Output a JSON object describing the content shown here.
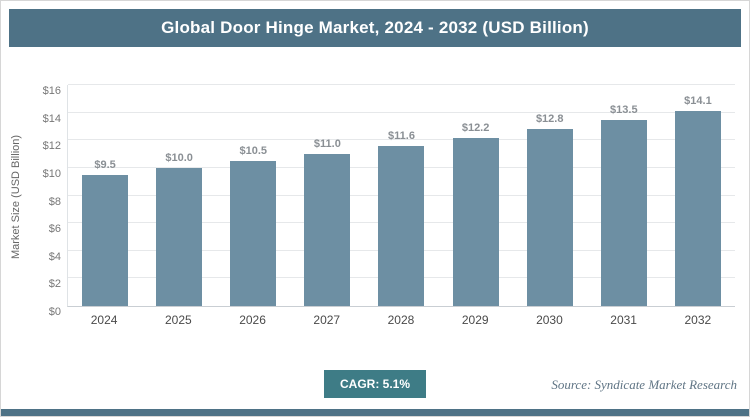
{
  "header": {
    "title": "Global Door Hinge Market, 2024 - 2032 (USD Billion)"
  },
  "chart_data": {
    "type": "bar",
    "title": "Global Door Hinge Market, 2024 - 2032 (USD Billion)",
    "categories": [
      "2024",
      "2025",
      "2026",
      "2027",
      "2028",
      "2029",
      "2030",
      "2031",
      "2032"
    ],
    "values": [
      9.5,
      10.0,
      10.5,
      11.0,
      11.6,
      12.2,
      12.8,
      13.5,
      14.1
    ],
    "value_labels": [
      "$9.5",
      "$10.0",
      "$10.5",
      "$11.0",
      "$11.6",
      "$12.2",
      "$12.8",
      "$13.5",
      "$14.1"
    ],
    "xlabel": "",
    "ylabel": "Market Size (USD Billion)",
    "ylim": [
      0,
      16
    ],
    "ytick_step": 2,
    "ytick_labels": [
      "$0",
      "$2",
      "$4",
      "$6",
      "$8",
      "$10",
      "$12",
      "$14",
      "$16"
    ],
    "grid": "horizontal",
    "legend": "none",
    "bar_color": "#6d8fa3"
  },
  "footer": {
    "cagr_label": "CAGR: 5.1%",
    "source": "Source: Syndicate Market Research"
  },
  "colors": {
    "header_bg": "#4e7286",
    "badge_bg": "#3e7c86",
    "bar": "#6d8fa3",
    "accent_strip": "#4e7286"
  }
}
